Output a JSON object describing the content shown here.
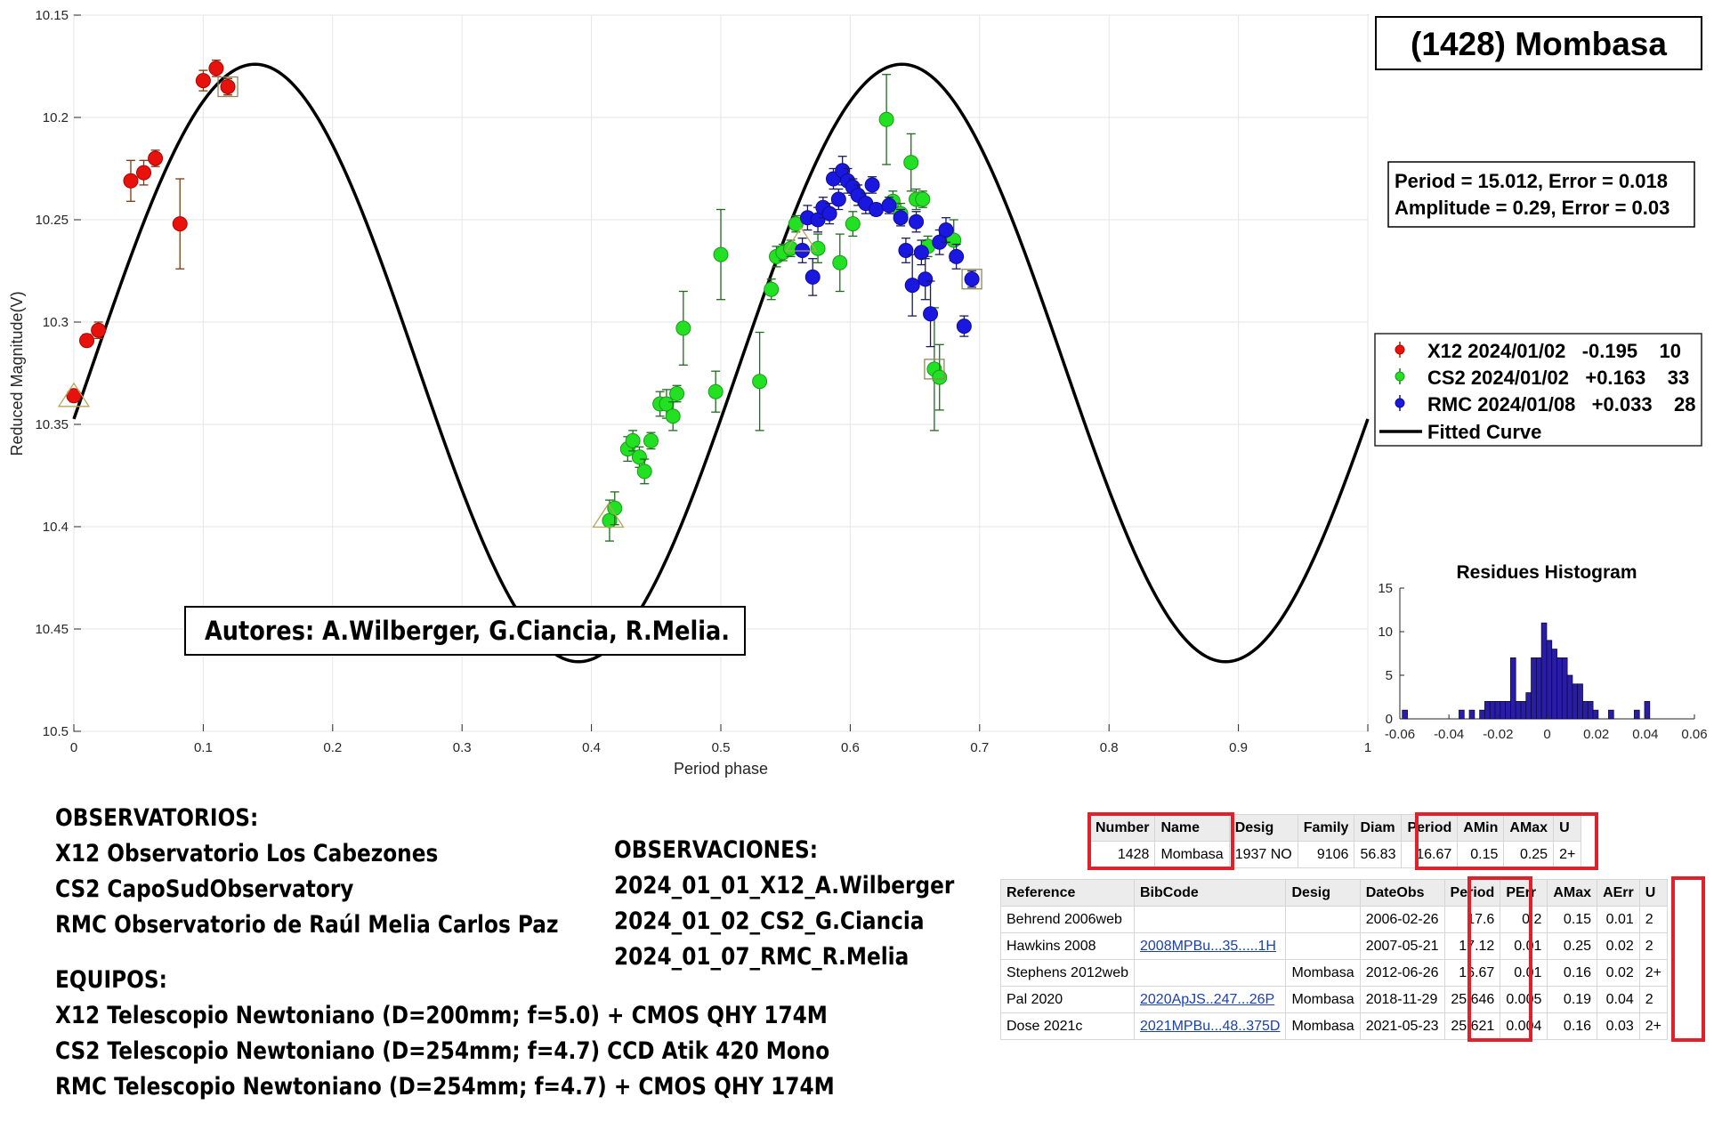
{
  "chart_data": [
    {
      "type": "scatter",
      "title": "(1428) Mombasa",
      "xlabel": "Period phase",
      "ylabel": "Reduced Magnitude(V)",
      "xlim": [
        0,
        1
      ],
      "ylim": [
        10.15,
        10.5
      ],
      "y_reversed": true,
      "grid": true,
      "x_ticks": [
        "0",
        "0.1",
        "0.2",
        "0.3",
        "0.4",
        "0.5",
        "0.6",
        "0.7",
        "0.8",
        "0.9",
        "1"
      ],
      "y_ticks": [
        "10.15",
        "10.2",
        "10.25",
        "10.3",
        "10.35",
        "10.4",
        "10.45",
        "10.5"
      ],
      "fit_text": [
        "Period =  15.012, Error = 0.018",
        "Amplitude = 0.29, Error = 0.03"
      ],
      "legend_position": "right",
      "fitted_curve": {
        "name": "Fitted Curve",
        "mean": 10.32,
        "amplitude": 0.146,
        "peak_phase": 0.14,
        "cycles": 2
      },
      "series": [
        {
          "name": "X12 2024/01/02   -0.195    10",
          "color": "#e8120c",
          "points": [
            [
              0.0,
              10.336,
              0.003
            ],
            [
              0.01,
              10.309,
              0.003
            ],
            [
              0.019,
              10.304,
              0.004
            ],
            [
              0.044,
              10.231,
              0.01
            ],
            [
              0.054,
              10.227,
              0.006
            ],
            [
              0.063,
              10.22,
              0.004
            ],
            [
              0.082,
              10.252,
              0.022
            ],
            [
              0.1,
              10.182,
              0.005
            ],
            [
              0.11,
              10.176,
              0.004
            ],
            [
              0.119,
              10.185,
              0.004
            ]
          ]
        },
        {
          "name": "CS2 2024/01/02   +0.163    33",
          "color": "#22e022",
          "points": [
            [
              0.414,
              10.397,
              0.01
            ],
            [
              0.418,
              10.391,
              0.008
            ],
            [
              0.428,
              10.362,
              0.006
            ],
            [
              0.432,
              10.358,
              0.005
            ],
            [
              0.437,
              10.366,
              0.005
            ],
            [
              0.441,
              10.373,
              0.006
            ],
            [
              0.446,
              10.358,
              0.004
            ],
            [
              0.453,
              10.34,
              0.006
            ],
            [
              0.458,
              10.34,
              0.007
            ],
            [
              0.463,
              10.346,
              0.007
            ],
            [
              0.466,
              10.335,
              0.004
            ],
            [
              0.471,
              10.303,
              0.018
            ],
            [
              0.496,
              10.334,
              0.01
            ],
            [
              0.5,
              10.267,
              0.022
            ],
            [
              0.53,
              10.329,
              0.024
            ],
            [
              0.539,
              10.284,
              0.005
            ],
            [
              0.543,
              10.268,
              0.005
            ],
            [
              0.548,
              10.266,
              0.004
            ],
            [
              0.554,
              10.264,
              0.004
            ],
            [
              0.558,
              10.252,
              0.004
            ],
            [
              0.575,
              10.264,
              0.007
            ],
            [
              0.592,
              10.271,
              0.014
            ],
            [
              0.602,
              10.252,
              0.006
            ],
            [
              0.628,
              10.201,
              0.022
            ],
            [
              0.633,
              10.241,
              0.005
            ],
            [
              0.639,
              10.247,
              0.005
            ],
            [
              0.647,
              10.222,
              0.014
            ],
            [
              0.651,
              10.24,
              0.005
            ],
            [
              0.656,
              10.24,
              0.004
            ],
            [
              0.66,
              10.263,
              0.005
            ],
            [
              0.665,
              10.323,
              0.03
            ],
            [
              0.669,
              10.327,
              0.016
            ],
            [
              0.68,
              10.26,
              0.01
            ]
          ]
        },
        {
          "name": "RMC 2024/01/08   +0.033    28",
          "color": "#1a18e0",
          "points": [
            [
              0.563,
              10.265,
              0.006
            ],
            [
              0.567,
              10.249,
              0.006
            ],
            [
              0.571,
              10.278,
              0.009
            ],
            [
              0.575,
              10.25,
              0.006
            ],
            [
              0.579,
              10.244,
              0.005
            ],
            [
              0.584,
              10.247,
              0.005
            ],
            [
              0.587,
              10.23,
              0.005
            ],
            [
              0.591,
              10.24,
              0.005
            ],
            [
              0.594,
              10.226,
              0.007
            ],
            [
              0.598,
              10.231,
              0.006
            ],
            [
              0.602,
              10.234,
              0.004
            ],
            [
              0.606,
              10.238,
              0.005
            ],
            [
              0.612,
              10.242,
              0.005
            ],
            [
              0.617,
              10.233,
              0.004
            ],
            [
              0.62,
              10.245,
              0.003
            ],
            [
              0.63,
              10.243,
              0.004
            ],
            [
              0.639,
              10.249,
              0.004
            ],
            [
              0.643,
              10.265,
              0.006
            ],
            [
              0.648,
              10.282,
              0.015
            ],
            [
              0.651,
              10.251,
              0.005
            ],
            [
              0.655,
              10.266,
              0.006
            ],
            [
              0.658,
              10.279,
              0.01
            ],
            [
              0.662,
              10.296,
              0.016
            ],
            [
              0.669,
              10.261,
              0.006
            ],
            [
              0.674,
              10.255,
              0.006
            ],
            [
              0.682,
              10.268,
              0.006
            ],
            [
              0.688,
              10.302,
              0.005
            ],
            [
              0.694,
              10.279,
              0.004
            ]
          ]
        }
      ],
      "triangle_markers": [
        [
          0.0,
          10.336
        ],
        [
          0.413,
          10.395
        ],
        [
          0.562,
          10.26
        ]
      ],
      "square_markers": [
        [
          0.119,
          10.185
        ],
        [
          0.665,
          10.323
        ],
        [
          0.694,
          10.279
        ]
      ]
    },
    {
      "type": "bar",
      "title": "Residues Histogram",
      "xlim": [
        -0.06,
        0.06
      ],
      "ylim": [
        0,
        15
      ],
      "x_ticks": [
        "-0.06",
        "-0.04",
        "-0.02",
        "0",
        "0.02",
        "0.04",
        "0.06"
      ],
      "y_ticks": [
        "0",
        "5",
        "10",
        "15"
      ],
      "color": "#2b1ca6",
      "bins": [
        [
          -0.059,
          1
        ],
        [
          -0.0569,
          0
        ],
        [
          -0.0548,
          0
        ],
        [
          -0.0527,
          0
        ],
        [
          -0.0506,
          0
        ],
        [
          -0.0485,
          0
        ],
        [
          -0.0464,
          0
        ],
        [
          -0.0443,
          0
        ],
        [
          -0.0422,
          0
        ],
        [
          -0.0401,
          0
        ],
        [
          -0.038,
          0
        ],
        [
          -0.0359,
          1
        ],
        [
          -0.0338,
          0
        ],
        [
          -0.0317,
          1
        ],
        [
          -0.0296,
          0
        ],
        [
          -0.0275,
          1
        ],
        [
          -0.0254,
          2
        ],
        [
          -0.0233,
          2
        ],
        [
          -0.0212,
          2
        ],
        [
          -0.0191,
          2
        ],
        [
          -0.017,
          2
        ],
        [
          -0.0149,
          7
        ],
        [
          -0.0128,
          2
        ],
        [
          -0.0107,
          2
        ],
        [
          -0.0086,
          3
        ],
        [
          -0.0065,
          7
        ],
        [
          -0.0044,
          7
        ],
        [
          -0.0023,
          11
        ],
        [
          -0.0002,
          9
        ],
        [
          0.0019,
          8
        ],
        [
          0.004,
          7
        ],
        [
          0.0061,
          7
        ],
        [
          0.0082,
          5
        ],
        [
          0.0103,
          4
        ],
        [
          0.0124,
          4
        ],
        [
          0.0145,
          2
        ],
        [
          0.0166,
          2
        ],
        [
          0.0187,
          1
        ],
        [
          0.0208,
          0
        ],
        [
          0.0229,
          0
        ],
        [
          0.025,
          1
        ],
        [
          0.0271,
          0
        ],
        [
          0.0292,
          0
        ],
        [
          0.0313,
          0
        ],
        [
          0.0334,
          0
        ],
        [
          0.0355,
          1
        ],
        [
          0.0376,
          0
        ],
        [
          0.0397,
          2
        ]
      ]
    }
  ],
  "authors": "Autores: A.Wilberger, G.Ciancia, R.Melia.",
  "observatorios": {
    "heading": "OBSERVATORIOS:",
    "lines": [
      "X12 Observatorio Los Cabezones",
      "CS2 CapoSudObservatory",
      "RMC Observatorio de Raúl Melia Carlos Paz"
    ]
  },
  "equipos": {
    "heading": "EQUIPOS:",
    "lines": [
      "X12 Telescopio Newtoniano (D=200mm; f=5.0) + CMOS QHY 174M",
      "CS2 Telescopio Newtoniano (D=254mm; f=4.7) CCD Atik 420 Mono",
      "RMC Telescopio Newtoniano (D=254mm; f=4.7) + CMOS QHY 174M"
    ]
  },
  "observaciones": {
    "heading": "OBSERVACIONES:",
    "lines": [
      "2024_01_01_X12_A.Wilberger",
      "2024_01_02_CS2_G.Ciancia",
      "2024_01_07_RMC_R.Melia"
    ]
  },
  "lcdb_summary": {
    "headers": [
      "Number",
      "Name",
      "Desig",
      "Family",
      "Diam",
      "Period",
      "AMin",
      "AMax",
      "U"
    ],
    "row": [
      "1428",
      "Mombasa",
      "1937 NO",
      "9106",
      "56.83",
      "16.67",
      "0.15",
      "0.25",
      "2+"
    ]
  },
  "lcdb_refs": {
    "headers": [
      "Reference",
      "BibCode",
      "Desig",
      "DateObs",
      "Period",
      "PErr",
      "AMax",
      "AErr",
      "U"
    ],
    "rows": [
      [
        "Behrend 2006web",
        "",
        "",
        "2006-02-26",
        "17.6",
        "0.2",
        "0.15",
        "0.01",
        "2"
      ],
      [
        "Hawkins 2008",
        "2008MPBu...35.....1H",
        "",
        "2007-05-21",
        "17.12",
        "0.01",
        "0.25",
        "0.02",
        "2"
      ],
      [
        "Stephens 2012web",
        "",
        "Mombasa",
        "2012-06-26",
        "16.67",
        "0.01",
        "0.16",
        "0.02",
        "2+"
      ],
      [
        "Pal 2020",
        "2020ApJS..247...26P",
        "Mombasa",
        "2018-11-29",
        "25.646",
        "0.005",
        "0.19",
        "0.04",
        "2"
      ],
      [
        "Dose 2021c",
        "2021MPBu...48..375D",
        "Mombasa",
        "2021-05-23",
        "25.621",
        "0.004",
        "0.16",
        "0.03",
        "2+"
      ]
    ]
  }
}
